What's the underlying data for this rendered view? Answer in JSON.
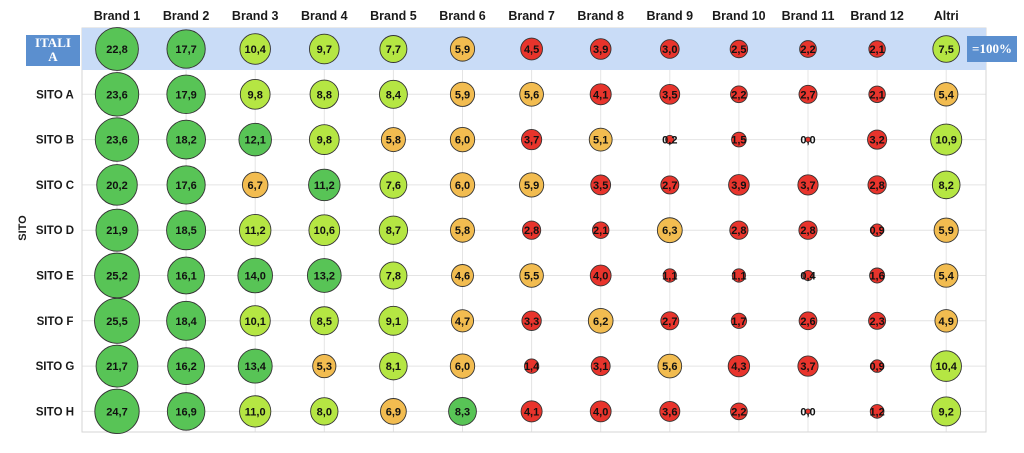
{
  "chart_data": {
    "type": "bubble-matrix",
    "y_axis_title": "SITO",
    "columns": [
      "Brand 1",
      "Brand 2",
      "Brand 3",
      "Brand 4",
      "Brand 5",
      "Brand 6",
      "Brand 7",
      "Brand 8",
      "Brand 9",
      "Brand 10",
      "Brand 11",
      "Brand 12",
      "Altri"
    ],
    "reference_row": {
      "label": "ITALIA",
      "note": "=100%",
      "values": [
        22.8,
        17.7,
        10.4,
        9.7,
        7.7,
        5.9,
        4.5,
        3.9,
        3.0,
        2.5,
        2.2,
        2.1,
        7.5
      ],
      "labels": [
        "22,8",
        "17,7",
        "10,4",
        "9,7",
        "7,7",
        "5,9",
        "4,5",
        "3,9",
        "3,0",
        "2,5",
        "2,2",
        "2,1",
        "7,5"
      ],
      "colors": [
        "#58c456",
        "#58c456",
        "#b5e643",
        "#b5e643",
        "#b5e643",
        "#f2bc50",
        "#e8342c",
        "#e8342c",
        "#e8342c",
        "#e8342c",
        "#e8342c",
        "#e8342c",
        "#b5e643"
      ]
    },
    "rows": [
      {
        "label": "SITO A",
        "values": [
          23.6,
          17.9,
          9.8,
          8.8,
          8.4,
          5.9,
          5.6,
          4.1,
          3.5,
          2.2,
          2.7,
          2.1,
          5.4
        ],
        "labels": [
          "23,6",
          "17,9",
          "9,8",
          "8,8",
          "8,4",
          "5,9",
          "5,6",
          "4,1",
          "3,5",
          "2,2",
          "2,7",
          "2,1",
          "5,4"
        ],
        "colors": [
          "#58c456",
          "#58c456",
          "#b5e643",
          "#b5e643",
          "#b5e643",
          "#f2bc50",
          "#f2bc50",
          "#e8342c",
          "#e8342c",
          "#e8342c",
          "#e8342c",
          "#e8342c",
          "#f2bc50"
        ]
      },
      {
        "label": "SITO B",
        "values": [
          23.6,
          18.2,
          12.1,
          9.8,
          5.8,
          6.0,
          3.7,
          5.1,
          0.2,
          1.5,
          0.0,
          3.2,
          10.9
        ],
        "labels": [
          "23,6",
          "18,2",
          "12,1",
          "9,8",
          "5,8",
          "6,0",
          "3,7",
          "5,1",
          "0,2",
          "1,5",
          "0,0",
          "3,2",
          "10,9"
        ],
        "colors": [
          "#58c456",
          "#58c456",
          "#58c456",
          "#b5e643",
          "#f2bc50",
          "#f2bc50",
          "#e8342c",
          "#f2bc50",
          "#e8342c",
          "#e8342c",
          "#e8342c",
          "#e8342c",
          "#b5e643"
        ]
      },
      {
        "label": "SITO C",
        "values": [
          20.2,
          17.6,
          6.7,
          11.2,
          7.6,
          6.0,
          5.9,
          3.5,
          2.7,
          3.9,
          3.7,
          2.8,
          8.2
        ],
        "labels": [
          "20,2",
          "17,6",
          "6,7",
          "11,2",
          "7,6",
          "6,0",
          "5,9",
          "3,5",
          "2,7",
          "3,9",
          "3,7",
          "2,8",
          "8,2"
        ],
        "colors": [
          "#58c456",
          "#58c456",
          "#f2bc50",
          "#58c456",
          "#b5e643",
          "#f2bc50",
          "#f2bc50",
          "#e8342c",
          "#e8342c",
          "#e8342c",
          "#e8342c",
          "#e8342c",
          "#b5e643"
        ]
      },
      {
        "label": "SITO D",
        "values": [
          21.9,
          18.5,
          11.2,
          10.6,
          8.7,
          5.8,
          2.8,
          2.1,
          6.3,
          2.8,
          2.8,
          0.9,
          5.9
        ],
        "labels": [
          "21,9",
          "18,5",
          "11,2",
          "10,6",
          "8,7",
          "5,8",
          "2,8",
          "2,1",
          "6,3",
          "2,8",
          "2,8",
          "0,9",
          "5,9"
        ],
        "colors": [
          "#58c456",
          "#58c456",
          "#b5e643",
          "#b5e643",
          "#b5e643",
          "#f2bc50",
          "#e8342c",
          "#e8342c",
          "#f2bc50",
          "#e8342c",
          "#e8342c",
          "#e8342c",
          "#f2bc50"
        ]
      },
      {
        "label": "SITO E",
        "values": [
          25.2,
          16.1,
          14.0,
          13.2,
          7.8,
          4.6,
          5.5,
          4.0,
          1.1,
          1.1,
          0.4,
          1.6,
          5.4
        ],
        "labels": [
          "25,2",
          "16,1",
          "14,0",
          "13,2",
          "7,8",
          "4,6",
          "5,5",
          "4,0",
          "1,1",
          "1,1",
          "0,4",
          "1,6",
          "5,4"
        ],
        "colors": [
          "#58c456",
          "#58c456",
          "#58c456",
          "#58c456",
          "#b5e643",
          "#f2bc50",
          "#f2bc50",
          "#e8342c",
          "#e8342c",
          "#e8342c",
          "#e8342c",
          "#e8342c",
          "#f2bc50"
        ]
      },
      {
        "label": "SITO F",
        "values": [
          25.5,
          18.4,
          10.1,
          8.5,
          9.1,
          4.7,
          3.3,
          6.2,
          2.7,
          1.7,
          2.6,
          2.3,
          4.9
        ],
        "labels": [
          "25,5",
          "18,4",
          "10,1",
          "8,5",
          "9,1",
          "4,7",
          "3,3",
          "6,2",
          "2,7",
          "1,7",
          "2,6",
          "2,3",
          "4,9"
        ],
        "colors": [
          "#58c456",
          "#58c456",
          "#b5e643",
          "#b5e643",
          "#b5e643",
          "#f2bc50",
          "#e8342c",
          "#f2bc50",
          "#e8342c",
          "#e8342c",
          "#e8342c",
          "#e8342c",
          "#f2bc50"
        ]
      },
      {
        "label": "SITO G",
        "values": [
          21.7,
          16.2,
          13.4,
          5.3,
          8.1,
          6.0,
          1.4,
          3.1,
          5.6,
          4.3,
          3.7,
          0.9,
          10.4
        ],
        "labels": [
          "21,7",
          "16,2",
          "13,4",
          "5,3",
          "8,1",
          "6,0",
          "1,4",
          "3,1",
          "5,6",
          "4,3",
          "3,7",
          "0,9",
          "10,4"
        ],
        "colors": [
          "#58c456",
          "#58c456",
          "#58c456",
          "#f2bc50",
          "#b5e643",
          "#f2bc50",
          "#e8342c",
          "#e8342c",
          "#f2bc50",
          "#e8342c",
          "#e8342c",
          "#e8342c",
          "#b5e643"
        ]
      },
      {
        "label": "SITO H",
        "values": [
          24.7,
          16.9,
          11.0,
          8.0,
          6.9,
          8.3,
          4.1,
          4.0,
          3.6,
          2.2,
          0.0,
          1.2,
          9.2
        ],
        "labels": [
          "24,7",
          "16,9",
          "11,0",
          "8,0",
          "6,9",
          "8,3",
          "4,1",
          "4,0",
          "3,6",
          "2,2",
          "0,0",
          "1,2",
          "9,2"
        ],
        "colors": [
          "#58c456",
          "#58c456",
          "#b5e643",
          "#b5e643",
          "#f2bc50",
          "#58c456",
          "#e8342c",
          "#e8342c",
          "#e8342c",
          "#e8342c",
          "#e8342c",
          "#e8342c",
          "#b5e643"
        ]
      }
    ],
    "grid": true
  },
  "style": {
    "highlight_band_color": "#c9dcf7",
    "side_box_color": "#5b8fcf",
    "circle_stroke_color": "#333333"
  }
}
